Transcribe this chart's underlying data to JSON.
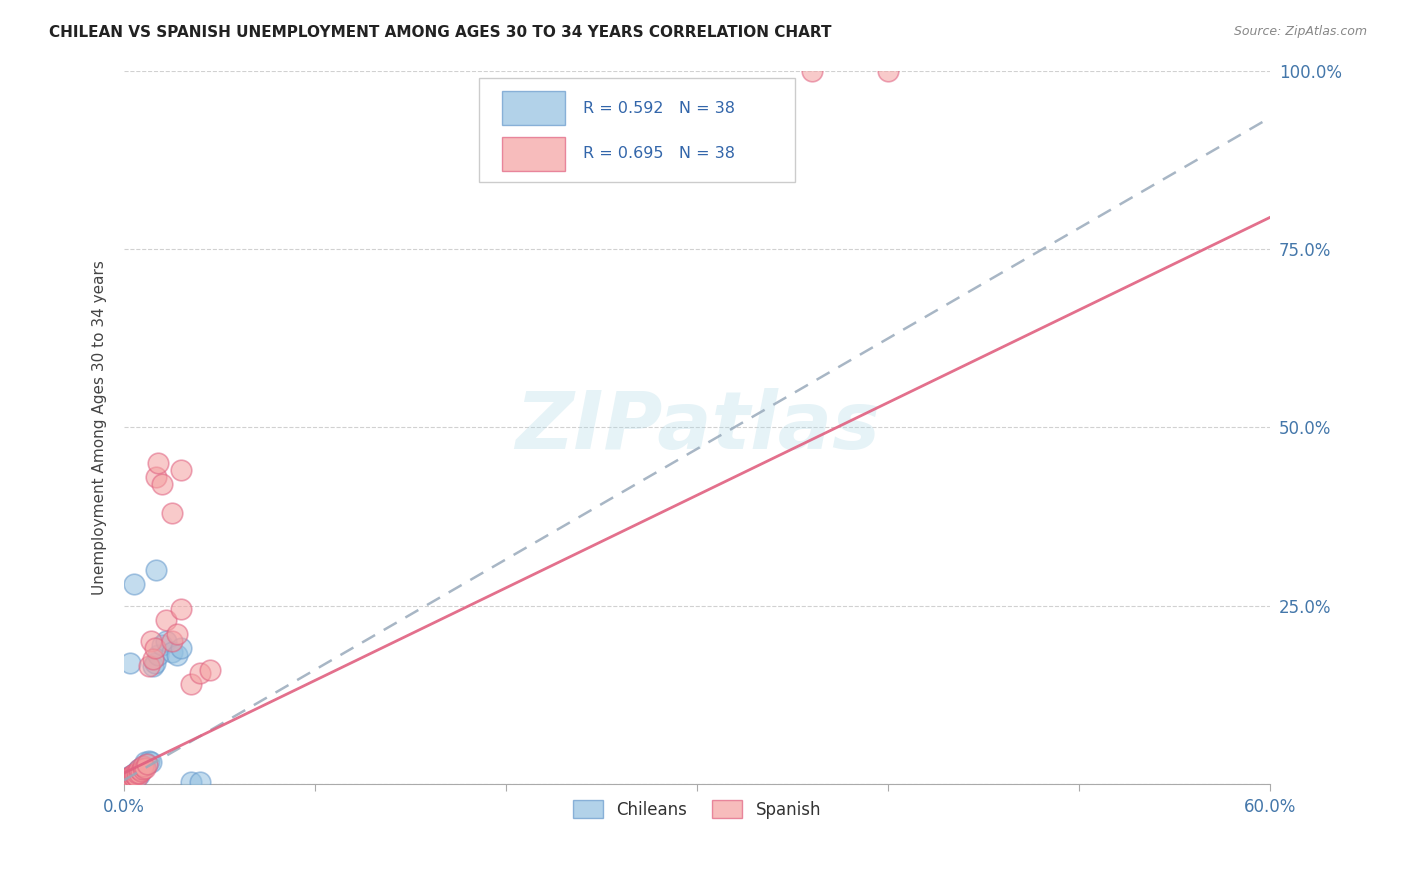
{
  "title": "CHILEAN VS SPANISH UNEMPLOYMENT AMONG AGES 30 TO 34 YEARS CORRELATION CHART",
  "source_text": "Source: ZipAtlas.com",
  "ylabel": "Unemployment Among Ages 30 to 34 years",
  "xlim": [
    0.0,
    0.6
  ],
  "ylim": [
    0.0,
    1.0
  ],
  "xticks": [
    0.0,
    0.1,
    0.2,
    0.3,
    0.4,
    0.5,
    0.6
  ],
  "yticks": [
    0.0,
    0.25,
    0.5,
    0.75,
    1.0
  ],
  "xtick_labels": [
    "0.0%",
    "",
    "",
    "",
    "",
    "",
    "60.0%"
  ],
  "ytick_labels": [
    "",
    "25.0%",
    "50.0%",
    "75.0%",
    "100.0%"
  ],
  "chilean_color": "#92c0e0",
  "chilean_edge_color": "#6699cc",
  "spanish_color": "#f4a0a0",
  "spanish_edge_color": "#e06080",
  "chilean_line_color": "#99aabb",
  "spanish_line_color": "#e06080",
  "chilean_R": 0.592,
  "chilean_N": 38,
  "spanish_R": 0.695,
  "spanish_N": 38,
  "watermark": "ZIPatlas",
  "legend_label_chilean": "Chileans",
  "legend_label_spanish": "Spanish",
  "chilean_line_intercept": 0.005,
  "chilean_line_slope": 1.55,
  "spanish_line_intercept": 0.015,
  "spanish_line_slope": 1.3,
  "ch_x": [
    0.001,
    0.001,
    0.001,
    0.002,
    0.002,
    0.002,
    0.002,
    0.003,
    0.003,
    0.003,
    0.004,
    0.004,
    0.005,
    0.005,
    0.006,
    0.006,
    0.007,
    0.008,
    0.008,
    0.009,
    0.01,
    0.011,
    0.012,
    0.013,
    0.014,
    0.015,
    0.016,
    0.017,
    0.018,
    0.02,
    0.022,
    0.025,
    0.028,
    0.03,
    0.035,
    0.04,
    0.005,
    0.003
  ],
  "ch_y": [
    0.002,
    0.003,
    0.005,
    0.003,
    0.005,
    0.008,
    0.01,
    0.004,
    0.006,
    0.01,
    0.008,
    0.012,
    0.006,
    0.01,
    0.012,
    0.015,
    0.018,
    0.012,
    0.02,
    0.022,
    0.025,
    0.03,
    0.028,
    0.032,
    0.03,
    0.165,
    0.17,
    0.3,
    0.18,
    0.195,
    0.2,
    0.185,
    0.18,
    0.19,
    0.002,
    0.003,
    0.28,
    0.17
  ],
  "sp_x": [
    0.001,
    0.001,
    0.002,
    0.002,
    0.003,
    0.003,
    0.004,
    0.004,
    0.005,
    0.005,
    0.006,
    0.007,
    0.007,
    0.008,
    0.008,
    0.009,
    0.01,
    0.01,
    0.011,
    0.012,
    0.013,
    0.014,
    0.015,
    0.016,
    0.017,
    0.018,
    0.02,
    0.022,
    0.025,
    0.028,
    0.03,
    0.035,
    0.04,
    0.045,
    0.36,
    0.4,
    0.025,
    0.03
  ],
  "sp_y": [
    0.003,
    0.005,
    0.005,
    0.008,
    0.006,
    0.01,
    0.008,
    0.012,
    0.01,
    0.014,
    0.012,
    0.01,
    0.015,
    0.015,
    0.02,
    0.018,
    0.02,
    0.025,
    0.022,
    0.028,
    0.165,
    0.2,
    0.175,
    0.19,
    0.43,
    0.45,
    0.42,
    0.23,
    0.2,
    0.21,
    0.44,
    0.14,
    0.155,
    0.16,
    1.0,
    1.0,
    0.38,
    0.245
  ]
}
